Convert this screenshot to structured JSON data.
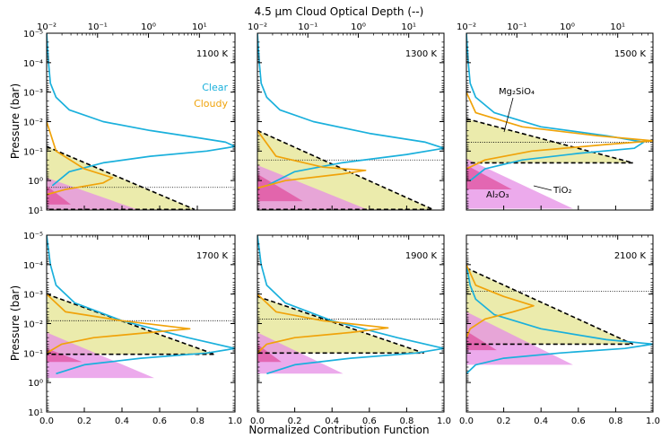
{
  "figure": {
    "top_xlabel": "4.5 μm Cloud Optical Depth (--)",
    "bottom_xlabel": "Normalized Contribution Function",
    "ylabel": "Pressure (bar)"
  },
  "legend": [
    {
      "label": "Clear",
      "color": "#1ab0dc"
    },
    {
      "label": "Cloudy",
      "color": "#f0a30a"
    }
  ],
  "cloud_labels": [
    {
      "label": "Mg₂SiO₄",
      "color": "#e8e89e"
    },
    {
      "label": "TiO₂",
      "color": "#e04a9a"
    },
    {
      "label": "Al₂O₃",
      "color": "#e58ee5"
    }
  ],
  "colors": {
    "clear": "#1ab0dc",
    "cloudy": "#f0a30a",
    "mg2sio4": "#e8e89e",
    "al2o3": "#e58ee5",
    "tio2": "#e04a9a"
  },
  "chart_data": [
    {
      "type": "line",
      "panel": "1100 K",
      "xlabel": "Normalized Contribution Function",
      "xlim": [
        0,
        1
      ],
      "ylabel": "Pressure (bar)",
      "ylim": [
        10,
        1e-05
      ],
      "yscale": "log",
      "top_axis": {
        "label": "4.5 μm Cloud Optical Depth (--)",
        "scale": "log",
        "lim": [
          0.01,
          50
        ]
      },
      "photosphere_pressure": 1.7,
      "series": [
        {
          "name": "Clear",
          "x": [
            0.0,
            0.01,
            0.02,
            0.05,
            0.12,
            0.3,
            0.55,
            0.8,
            0.95,
            1.0,
            0.85,
            0.55,
            0.3,
            0.12,
            0.03
          ],
          "p": [
            1e-05,
            0.0001,
            0.0005,
            0.0015,
            0.004,
            0.01,
            0.02,
            0.035,
            0.05,
            0.07,
            0.1,
            0.15,
            0.25,
            0.5,
            1.5
          ]
        },
        {
          "name": "Cloudy",
          "x": [
            0.0,
            0.05,
            0.2,
            0.35,
            0.3,
            0.1,
            0.0
          ],
          "p": [
            0.01,
            0.1,
            0.4,
            0.8,
            1.2,
            2.0,
            3.0
          ]
        }
      ],
      "clouds": [
        {
          "name": "Mg₂SiO₄",
          "top_p": 0.07,
          "base_p": 9.5,
          "tau_at_base": 8
        },
        {
          "name": "Al₂O₃",
          "top_p": 0.8,
          "base_p": 9.5,
          "tau_at_base": 0.6
        },
        {
          "name": "TiO₂",
          "top_p": 1.5,
          "base_p": 6.5,
          "tau_at_base": 0.03
        }
      ]
    },
    {
      "type": "line",
      "panel": "1300 K",
      "xlabel": "Normalized Contribution Function",
      "xlim": [
        0,
        1
      ],
      "ylabel": "Pressure (bar)",
      "ylim": [
        10,
        1e-05
      ],
      "yscale": "log",
      "top_axis": {
        "label": "4.5 μm Cloud Optical Depth (--)",
        "scale": "log",
        "lim": [
          0.01,
          50
        ]
      },
      "photosphere_pressure": 0.2,
      "series": [
        {
          "name": "Clear",
          "x": [
            0.0,
            0.01,
            0.02,
            0.05,
            0.12,
            0.3,
            0.6,
            0.9,
            1.0,
            0.8,
            0.45,
            0.2,
            0.05
          ],
          "p": [
            1e-05,
            0.0001,
            0.0005,
            0.0015,
            0.004,
            0.01,
            0.025,
            0.05,
            0.08,
            0.13,
            0.25,
            0.5,
            1.5
          ]
        },
        {
          "name": "Cloudy",
          "x": [
            0.0,
            0.1,
            0.35,
            0.58,
            0.45,
            0.15,
            0.0
          ],
          "p": [
            0.02,
            0.15,
            0.35,
            0.45,
            0.6,
            1.0,
            1.8
          ]
        }
      ],
      "clouds": [
        {
          "name": "Mg₂SiO₄",
          "top_p": 0.02,
          "base_p": 9.5,
          "tau_at_base": 30
        },
        {
          "name": "Al₂O₃",
          "top_p": 0.3,
          "base_p": 9.5,
          "tau_at_base": 1.5
        },
        {
          "name": "TiO₂",
          "top_p": 0.6,
          "base_p": 5,
          "tau_at_base": 0.08
        }
      ]
    },
    {
      "type": "line",
      "panel": "1500 K",
      "xlabel": "Normalized Contribution Function",
      "xlim": [
        0,
        1
      ],
      "ylabel": "Pressure (bar)",
      "ylim": [
        10,
        1e-05
      ],
      "yscale": "log",
      "top_axis": {
        "label": "4.5 μm Cloud Optical Depth (--)",
        "scale": "log",
        "lim": [
          0.01,
          50
        ]
      },
      "photosphere_pressure": 0.05,
      "series": [
        {
          "name": "Clear",
          "x": [
            0.0,
            0.01,
            0.02,
            0.05,
            0.15,
            0.4,
            0.75,
            0.95,
            0.9,
            0.6,
            0.3,
            0.1,
            0.02
          ],
          "p": [
            1e-05,
            0.0001,
            0.0005,
            0.0015,
            0.005,
            0.015,
            0.03,
            0.05,
            0.08,
            0.12,
            0.2,
            0.4,
            1.0
          ]
        },
        {
          "name": "Cloudy",
          "x": [
            0.0,
            0.05,
            0.3,
            0.7,
            1.0,
            0.75,
            0.35,
            0.1,
            0.0
          ],
          "p": [
            0.001,
            0.005,
            0.015,
            0.03,
            0.045,
            0.06,
            0.1,
            0.2,
            0.4
          ]
        }
      ],
      "clouds": [
        {
          "name": "Mg₂SiO₄",
          "top_p": 0.008,
          "base_p": 0.25,
          "tau_at_base": 20
        },
        {
          "name": "Al₂O₃",
          "top_p": 0.18,
          "base_p": 9,
          "tau_at_base": 1.3
        },
        {
          "name": "TiO₂",
          "top_p": 0.3,
          "base_p": 2,
          "tau_at_base": 0.08
        }
      ]
    },
    {
      "type": "line",
      "panel": "1700 K",
      "xlabel": "Normalized Contribution Function",
      "xlim": [
        0,
        1
      ],
      "ylabel": "Pressure (bar)",
      "ylim": [
        10,
        1e-05
      ],
      "yscale": "log",
      "top_axis": {
        "label": "4.5 μm Cloud Optical Depth (--)",
        "scale": "log",
        "lim": [
          0.01,
          50
        ]
      },
      "photosphere_pressure": 0.008,
      "series": [
        {
          "name": "Clear",
          "x": [
            0.0,
            0.02,
            0.05,
            0.15,
            0.4,
            0.75,
            1.0,
            0.85,
            0.5,
            0.2,
            0.05
          ],
          "p": [
            1e-05,
            0.0001,
            0.0005,
            0.002,
            0.008,
            0.03,
            0.07,
            0.1,
            0.15,
            0.25,
            0.5
          ]
        },
        {
          "name": "Cloudy",
          "x": [
            0.0,
            0.1,
            0.4,
            0.76,
            0.55,
            0.25,
            0.08,
            0.0
          ],
          "p": [
            0.001,
            0.004,
            0.008,
            0.015,
            0.02,
            0.03,
            0.05,
            0.1
          ]
        }
      ],
      "clouds": [
        {
          "name": "Mg₂SiO₄",
          "top_p": 0.001,
          "base_p": 0.11,
          "tau_at_base": 20
        },
        {
          "name": "Al₂O₃",
          "top_p": 0.02,
          "base_p": 0.7,
          "tau_at_base": 1.3
        },
        {
          "name": "TiO₂",
          "top_p": 0.07,
          "base_p": 0.2,
          "tau_at_base": 0.05
        }
      ]
    },
    {
      "type": "line",
      "panel": "1900 K",
      "xlabel": "Normalized Contribution Function",
      "xlim": [
        0,
        1
      ],
      "ylabel": "Pressure (bar)",
      "ylim": [
        10,
        1e-05
      ],
      "yscale": "log",
      "top_axis": {
        "label": "4.5 μm Cloud Optical Depth (--)",
        "scale": "log",
        "lim": [
          0.01,
          50
        ]
      },
      "photosphere_pressure": 0.007,
      "series": [
        {
          "name": "Clear",
          "x": [
            0.0,
            0.02,
            0.05,
            0.15,
            0.4,
            0.75,
            1.0,
            0.85,
            0.5,
            0.2,
            0.05
          ],
          "p": [
            1e-05,
            0.0001,
            0.0005,
            0.002,
            0.008,
            0.03,
            0.07,
            0.1,
            0.15,
            0.25,
            0.5
          ]
        },
        {
          "name": "Cloudy",
          "x": [
            0.0,
            0.1,
            0.35,
            0.7,
            0.5,
            0.2,
            0.05,
            0.0
          ],
          "p": [
            0.001,
            0.004,
            0.008,
            0.014,
            0.02,
            0.03,
            0.05,
            0.1
          ]
        }
      ],
      "clouds": [
        {
          "name": "Mg₂SiO₄",
          "top_p": 0.0012,
          "base_p": 0.1,
          "tau_at_base": 20
        },
        {
          "name": "Al₂O₃",
          "top_p": 0.02,
          "base_p": 0.5,
          "tau_at_base": 0.5
        },
        {
          "name": "TiO₂",
          "top_p": 0.05,
          "base_p": 0.2,
          "tau_at_base": 0.03
        }
      ]
    },
    {
      "type": "line",
      "panel": "2100 K",
      "xlabel": "Normalized Contribution Function",
      "xlim": [
        0,
        1
      ],
      "ylabel": "Pressure (bar)",
      "ylim": [
        10,
        1e-05
      ],
      "yscale": "log",
      "top_axis": {
        "label": "4.5 μm Cloud Optical Depth (--)",
        "scale": "log",
        "lim": [
          0.01,
          50
        ]
      },
      "photosphere_pressure": 0.0008,
      "series": [
        {
          "name": "Clear",
          "x": [
            0.0,
            0.02,
            0.05,
            0.15,
            0.4,
            0.75,
            1.0,
            0.85,
            0.5,
            0.2,
            0.05,
            0.0
          ],
          "p": [
            0.0001,
            0.0005,
            0.0015,
            0.005,
            0.015,
            0.035,
            0.05,
            0.07,
            0.1,
            0.15,
            0.25,
            0.5
          ]
        },
        {
          "name": "Cloudy",
          "x": [
            0.0,
            0.05,
            0.2,
            0.36,
            0.25,
            0.1,
            0.02,
            0.0
          ],
          "p": [
            0.0001,
            0.0005,
            0.0012,
            0.0025,
            0.004,
            0.007,
            0.015,
            0.03
          ]
        }
      ],
      "clouds": [
        {
          "name": "Mg₂SiO₄",
          "top_p": 0.00013,
          "base_p": 0.05,
          "tau_at_base": 20
        },
        {
          "name": "Al₂O₃",
          "top_p": 0.004,
          "base_p": 0.25,
          "tau_at_base": 1.3
        },
        {
          "name": "TiO₂",
          "top_p": 0.018,
          "base_p": 0.08,
          "tau_at_base": 0.04
        }
      ]
    }
  ]
}
